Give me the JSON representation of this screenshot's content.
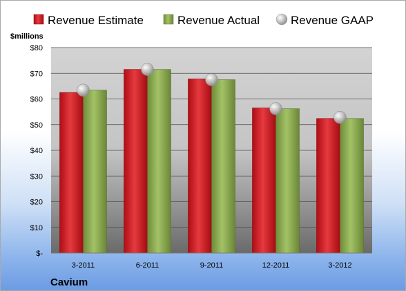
{
  "chart_data": {
    "type": "bar",
    "company": "Cavium",
    "unit_label": "$millions",
    "categories": [
      "3-2011",
      "6-2011",
      "9-2011",
      "12-2011",
      "3-2012"
    ],
    "series": [
      {
        "name": "Revenue Estimate",
        "type": "bar",
        "color": "#d0161f",
        "values": [
          62.5,
          71.5,
          67.8,
          56.5,
          52.4
        ]
      },
      {
        "name": "Revenue Actual",
        "type": "bar",
        "color": "#8fae54",
        "values": [
          63.4,
          71.5,
          67.5,
          56.2,
          52.4
        ]
      },
      {
        "name": "Revenue GAAP",
        "type": "marker",
        "color": "#b8b8b8",
        "values": [
          63.4,
          71.5,
          67.5,
          56.2,
          52.8
        ]
      }
    ],
    "y_ticks": [
      "$-",
      "$10",
      "$20",
      "$30",
      "$40",
      "$50",
      "$60",
      "$70",
      "$80"
    ],
    "ylim": [
      0,
      80
    ],
    "grid": true,
    "legend_position": "top"
  }
}
